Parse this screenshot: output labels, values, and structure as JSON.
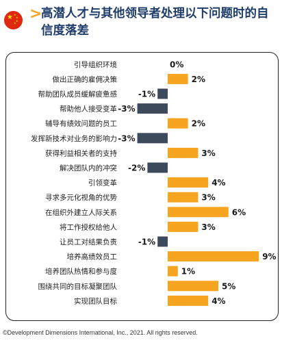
{
  "header": {
    "title": "高潜人才与其他领导者处理以下问题时的自信度落差",
    "flag_icon": "china-flag-icon",
    "arrow_icon": "chevron-right-icon",
    "accent_color": "#f7a520",
    "title_color": "#1f3d6b"
  },
  "chart_data": {
    "type": "bar",
    "orientation": "horizontal",
    "categories": [
      "引导组织环境",
      "做出正确的雇佣决策",
      "帮助团队成员缓解疲惫感",
      "帮助他人接受变革",
      "辅导有绩效问题的员工",
      "发挥新技术对业务的影响力",
      "获得利益相关者的支持",
      "解决团队内的冲突",
      "引领变革",
      "寻求多元化视角的优势",
      "在组织外建立人际关系",
      "将工作授权给他人",
      "让员工对结果负责",
      "培养高绩效员工",
      "培养团队热情和参与度",
      "围绕共同的目标凝聚团队",
      "实现团队目标"
    ],
    "values": [
      0,
      2,
      -1,
      -3,
      2,
      -3,
      3,
      -2,
      4,
      3,
      6,
      3,
      -1,
      9,
      1,
      5,
      4
    ],
    "labels": [
      "0%",
      "2%",
      "-1%",
      "-3%",
      "2%",
      "-3%",
      "3%",
      "-2%",
      "4%",
      "3%",
      "6%",
      "3%",
      "-1%",
      "9%",
      "1%",
      "5%",
      "4%"
    ],
    "colors": {
      "positive": "#f7a520",
      "negative": "#3d4a5c"
    }
  },
  "footer": {
    "copyright": "©Development Dimensions International, Inc., 2021. All rights reserved."
  }
}
